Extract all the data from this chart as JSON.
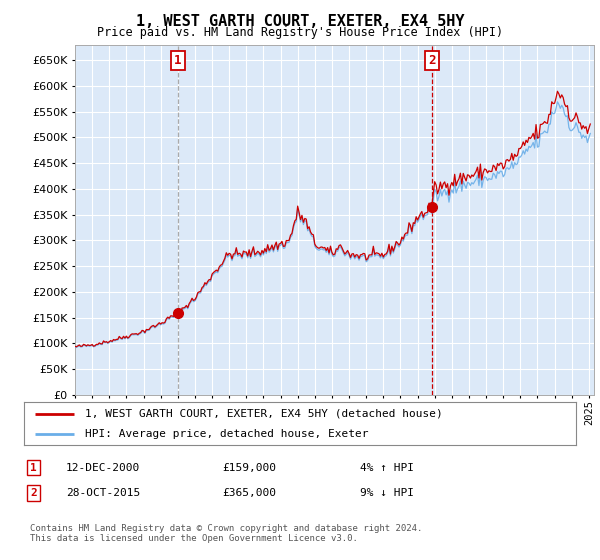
{
  "title": "1, WEST GARTH COURT, EXETER, EX4 5HY",
  "subtitle": "Price paid vs. HM Land Registry's House Price Index (HPI)",
  "ylim": [
    0,
    680000
  ],
  "ylabel_ticks": [
    0,
    50000,
    100000,
    150000,
    200000,
    250000,
    300000,
    350000,
    400000,
    450000,
    500000,
    550000,
    600000,
    650000
  ],
  "xlim_start": 1995.0,
  "xlim_end": 2025.3,
  "plot_bg_color": "#dce9f8",
  "grid_color": "#ffffff",
  "sale1_x": 2001.0,
  "sale1_y": 159000,
  "sale1_label": "1",
  "sale1_date": "12-DEC-2000",
  "sale1_price": "£159,000",
  "sale1_hpi": "4% ↑ HPI",
  "sale2_x": 2015.83,
  "sale2_y": 365000,
  "sale2_label": "2",
  "sale2_date": "28-OCT-2015",
  "sale2_price": "£365,000",
  "sale2_hpi": "9% ↓ HPI",
  "line_color_red": "#cc0000",
  "line_color_blue": "#6aaee8",
  "dashed_line_color1": "#aaaaaa",
  "dashed_line_color2": "#cc0000",
  "legend_line1": "1, WEST GARTH COURT, EXETER, EX4 5HY (detached house)",
  "legend_line2": "HPI: Average price, detached house, Exeter",
  "footer": "Contains HM Land Registry data © Crown copyright and database right 2024.\nThis data is licensed under the Open Government Licence v3.0."
}
